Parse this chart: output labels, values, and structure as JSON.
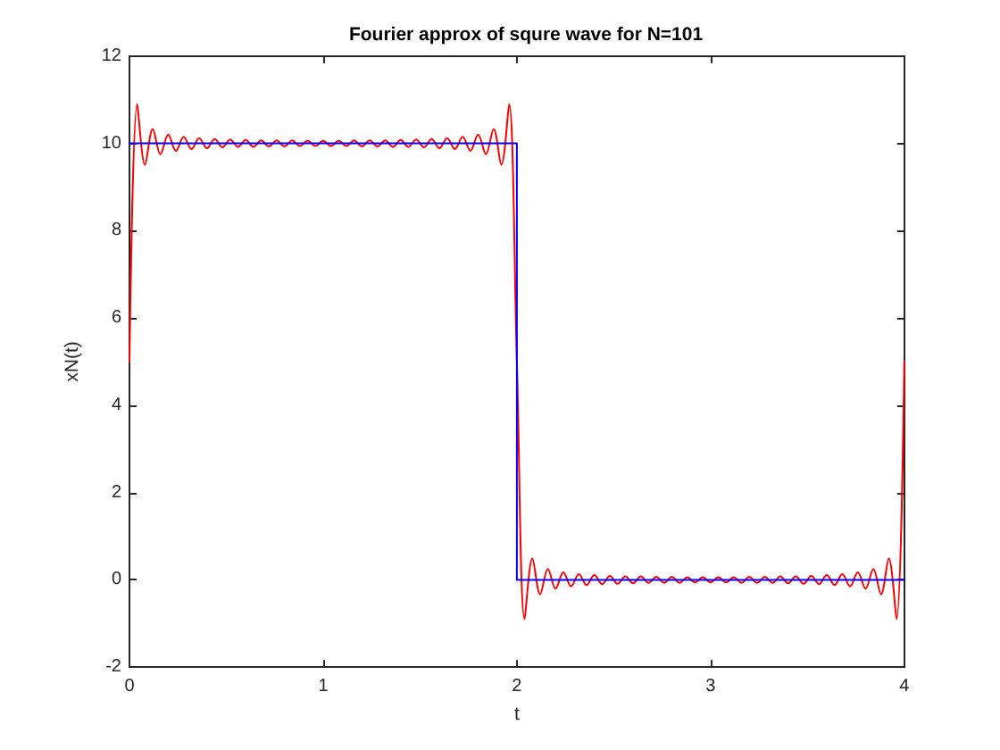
{
  "chart_data": {
    "type": "line",
    "title": "Fourier approx of squre wave for N=101",
    "xlabel": "t",
    "ylabel": "xN(t)",
    "xlim": [
      0,
      4
    ],
    "ylim": [
      -2,
      12
    ],
    "xticks": [
      0,
      1,
      2,
      3,
      4
    ],
    "yticks": [
      -2,
      0,
      2,
      4,
      6,
      8,
      10,
      12
    ],
    "marker": "none",
    "line_style": "solid",
    "series": [
      {
        "color": "#ff0000",
        "x": [
          0,
          0.04,
          0.08,
          0.12,
          0.16,
          0.2,
          0.24,
          0.28,
          0.32,
          0.36,
          0.4,
          0.44,
          0.48,
          0.52,
          0.56,
          0.6,
          0.64,
          0.68,
          0.72,
          0.76,
          0.8,
          0.84,
          0.88,
          0.92,
          0.96,
          1,
          1.04,
          1.08,
          1.12,
          1.16,
          1.2,
          1.24,
          1.28,
          1.32,
          1.36,
          1.4,
          1.44,
          1.48,
          1.52,
          1.56,
          1.6,
          1.64,
          1.68,
          1.72,
          1.76,
          1.8,
          1.84,
          1.88,
          1.92,
          1.96,
          2,
          2.04,
          2.08,
          2.12,
          2.16,
          2.2,
          2.24,
          2.28,
          2.32,
          2.36,
          2.4,
          2.44,
          2.48,
          2.52,
          2.56,
          2.6,
          2.64,
          2.68,
          2.72,
          2.76,
          2.8,
          2.84,
          2.88,
          2.92,
          2.96,
          3,
          3.04,
          3.08,
          3.12,
          3.16,
          3.2,
          3.24,
          3.28,
          3.32,
          3.36,
          3.4,
          3.44,
          3.48,
          3.52,
          3.56,
          3.6,
          3.64,
          3.68,
          3.72,
          3.76,
          3.8,
          3.84,
          3.88,
          3.92,
          3.96,
          4
        ],
        "values": [
          5,
          10.9,
          9.51,
          10.33,
          9.75,
          10.2,
          9.83,
          10.15,
          9.87,
          10.12,
          9.89,
          10.1,
          9.91,
          10.09,
          9.92,
          10.08,
          9.92,
          10.07,
          9.93,
          10.07,
          9.93,
          10.07,
          9.94,
          10.06,
          9.94,
          10.06,
          9.94,
          10.06,
          9.94,
          10.07,
          9.93,
          10.07,
          9.93,
          10.07,
          9.92,
          10.08,
          9.92,
          10.09,
          9.91,
          10.1,
          9.89,
          10.12,
          9.87,
          10.15,
          9.83,
          10.2,
          9.75,
          10.33,
          9.51,
          10.9,
          5,
          -0.9,
          0.49,
          -0.33,
          0.25,
          -0.2,
          0.17,
          -0.15,
          0.13,
          -0.12,
          0.11,
          -0.1,
          0.09,
          -0.09,
          0.08,
          -0.08,
          0.08,
          -0.07,
          0.07,
          -0.07,
          0.07,
          -0.07,
          0.06,
          -0.06,
          0.06,
          -0.06,
          0.06,
          -0.06,
          0.06,
          -0.07,
          0.07,
          -0.07,
          0.07,
          -0.07,
          0.08,
          -0.08,
          0.08,
          -0.09,
          0.09,
          -0.1,
          0.11,
          -0.12,
          0.13,
          -0.15,
          0.17,
          -0.2,
          0.25,
          -0.33,
          0.49,
          -0.9,
          5
        ]
      },
      {
        "color": "#0000ff",
        "x": [
          0,
          2,
          2,
          4
        ],
        "values": [
          10,
          10,
          0,
          0
        ]
      }
    ]
  }
}
